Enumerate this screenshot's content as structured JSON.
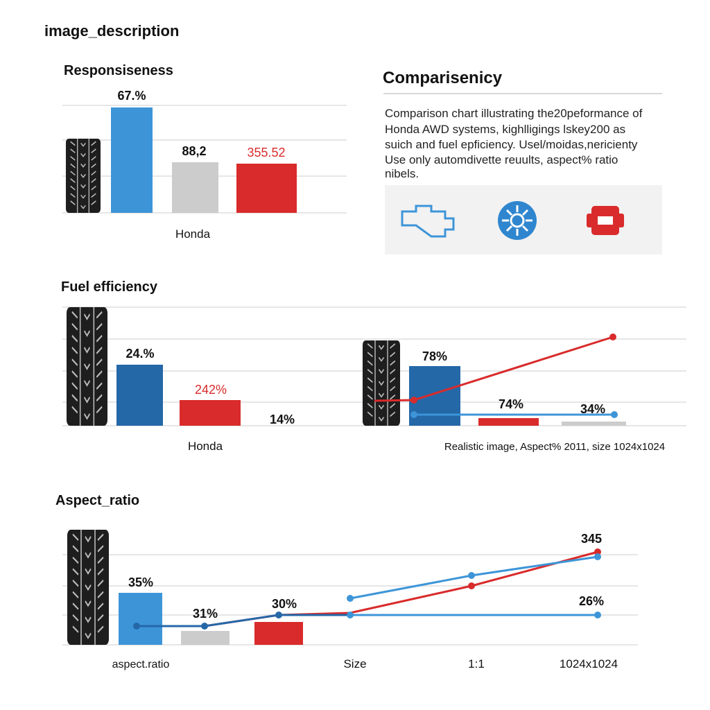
{
  "header": {
    "title": "image_description"
  },
  "responsiveness": {
    "title": "Responsiseness",
    "labels": [
      "67.%",
      "88,2",
      "355.52"
    ],
    "category": "Honda"
  },
  "comparison": {
    "title": "Comparisenicy",
    "lines": [
      "Comparison chart illustrating the20peformance of",
      "Honda AWD systems, kighlligings lskey200 as",
      "suich and fuel epficiency. Usel/moidas,nericienty",
      "Use only automdivette reuults, aspect% ratio",
      "nibels."
    ]
  },
  "fuel": {
    "title": "Fuel efficiency",
    "labels": [
      "24.%",
      "242%",
      "14%"
    ],
    "category": "Honda",
    "right_labels": [
      "78%",
      "74%",
      "34%"
    ],
    "caption": "Realistic image, Aspect%  2011, size 1024x1024"
  },
  "aspect": {
    "title": "Aspect_ratio",
    "labels": [
      "35%",
      "31%",
      "30%",
      "345",
      "26%"
    ],
    "x_labels": [
      "aspect.ratio",
      "Size",
      "1:1",
      "1024x1024"
    ]
  }
}
